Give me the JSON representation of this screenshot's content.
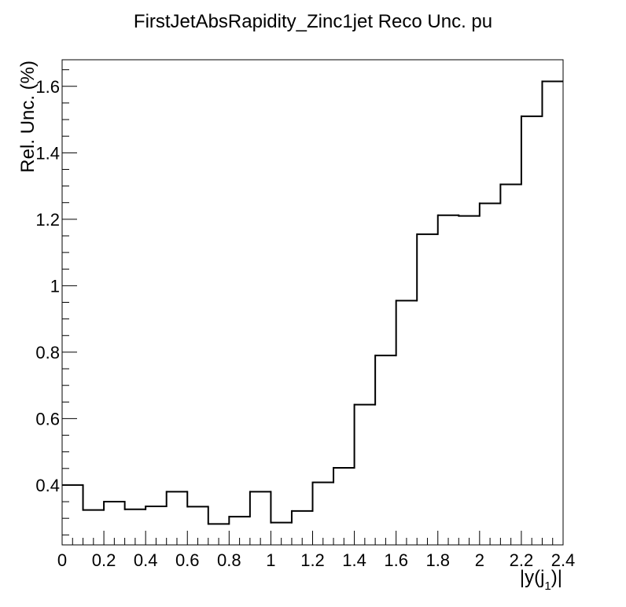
{
  "chart_data": {
    "type": "line",
    "style": "step-histogram",
    "title": "FirstJetAbsRapidity_Zinc1jet Reco Unc. pu",
    "xlabel": "|y(j",
    "xlabel_subscript": "1",
    "xlabel_suffix": ")|",
    "ylabel": "Rel. Unc. (%)",
    "xlim": [
      0,
      2.4
    ],
    "ylim": [
      0.22,
      1.68
    ],
    "x_ticks": [
      0,
      0.2,
      0.4,
      0.6,
      0.8,
      1,
      1.2,
      1.4,
      1.6,
      1.8,
      2,
      2.2,
      2.4
    ],
    "x_tick_labels": [
      "0",
      "0.2",
      "0.4",
      "0.6",
      "0.8",
      "1",
      "1.2",
      "1.4",
      "1.6",
      "1.8",
      "2",
      "2.2",
      "2.4"
    ],
    "y_ticks": [
      0.4,
      0.6,
      0.8,
      1.0,
      1.2,
      1.4,
      1.6
    ],
    "y_tick_labels": [
      "0.4",
      "0.6",
      "0.8",
      "1",
      "1.2",
      "1.4",
      "1.6"
    ],
    "bin_edges": [
      0,
      0.1,
      0.2,
      0.3,
      0.4,
      0.5,
      0.6,
      0.7,
      0.8,
      0.9,
      1.0,
      1.1,
      1.2,
      1.3,
      1.4,
      1.5,
      1.6,
      1.7,
      1.8,
      1.9,
      2.0,
      2.1,
      2.2,
      2.3,
      2.4
    ],
    "values": [
      0.4,
      0.325,
      0.35,
      0.327,
      0.336,
      0.38,
      0.335,
      0.283,
      0.305,
      0.38,
      0.287,
      0.322,
      0.408,
      0.452,
      0.642,
      0.79,
      0.955,
      1.155,
      1.212,
      1.21,
      1.248,
      1.305,
      1.51,
      1.615
    ],
    "line_color": "#000000",
    "grid": false,
    "legend": "none"
  }
}
